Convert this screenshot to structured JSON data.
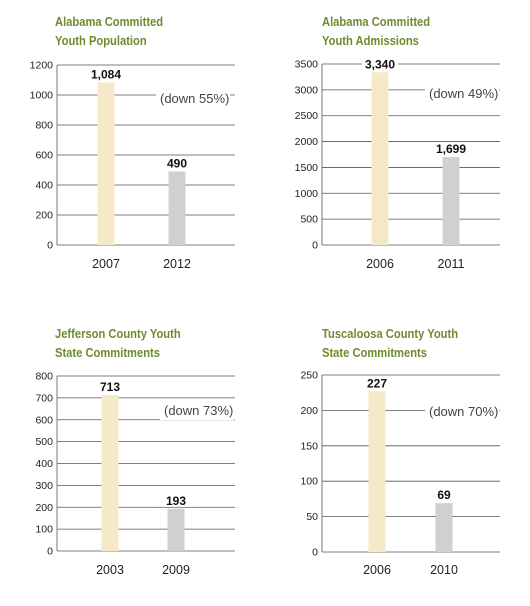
{
  "colors": {
    "title": "#6e8c2e",
    "bar_first": "#f5e9c8",
    "bar_second": "#cfd0d1",
    "grid": "#555555"
  },
  "chart_data": [
    {
      "type": "bar",
      "title_line1": "Alabama Committed",
      "title_line2": "Youth Population",
      "categories": [
        "2007",
        "2012"
      ],
      "values": [
        1084,
        490
      ],
      "value_labels": [
        "1,084",
        "490"
      ],
      "ylim": [
        0,
        1200
      ],
      "yticks": [
        0,
        200,
        400,
        600,
        800,
        1000,
        1200
      ],
      "ytick_labels": [
        "0",
        "200",
        "400",
        "600",
        "800",
        "1000",
        "1200"
      ],
      "annotation": "(down 55%)",
      "grid": true
    },
    {
      "type": "bar",
      "title_line1": "Alabama Committed",
      "title_line2": "Youth Admissions",
      "categories": [
        "2006",
        "2011"
      ],
      "values": [
        3340,
        1699
      ],
      "value_labels": [
        "3,340",
        "1,699"
      ],
      "ylim": [
        0,
        3500
      ],
      "yticks": [
        0,
        500,
        1000,
        1500,
        2000,
        2500,
        3000,
        3500
      ],
      "ytick_labels": [
        "0",
        "500",
        "1000",
        "1500",
        "2000",
        "2500",
        "3000",
        "3500"
      ],
      "annotation": "(down 49%)",
      "grid": true
    },
    {
      "type": "bar",
      "title_line1": "Jefferson County Youth",
      "title_line2": "State Commitments",
      "categories": [
        "2003",
        "2009"
      ],
      "values": [
        713,
        193
      ],
      "value_labels": [
        "713",
        "193"
      ],
      "ylim": [
        0,
        800
      ],
      "yticks": [
        0,
        100,
        200,
        300,
        400,
        500,
        600,
        700,
        800
      ],
      "ytick_labels": [
        "0",
        "100",
        "200",
        "300",
        "400",
        "500",
        "600",
        "700",
        "800"
      ],
      "annotation": "(down 73%)",
      "grid": true
    },
    {
      "type": "bar",
      "title_line1": "Tuscaloosa County Youth",
      "title_line2": "State Commitments",
      "categories": [
        "2006",
        "2010"
      ],
      "values": [
        227,
        69
      ],
      "value_labels": [
        "227",
        "69"
      ],
      "ylim": [
        0,
        250
      ],
      "yticks": [
        0,
        50,
        100,
        150,
        200,
        250
      ],
      "ytick_labels": [
        "0",
        "50",
        "100",
        "150",
        "200",
        "250"
      ],
      "annotation": "(down 70%)",
      "grid": true
    }
  ]
}
